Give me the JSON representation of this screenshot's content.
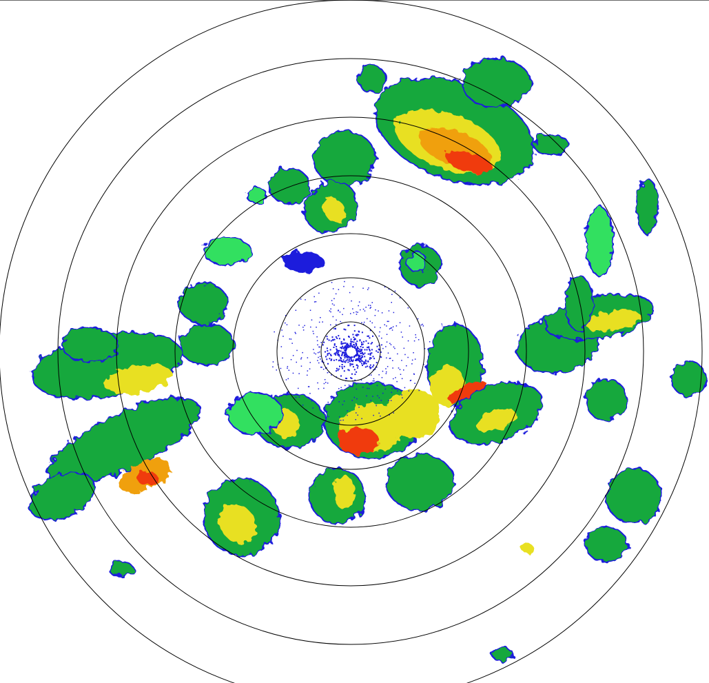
{
  "radar": {
    "product": "reflectivity-ppi",
    "range_ring_count": 7,
    "color_scale": {
      "very_light": "#1a1adc",
      "light": "#20c8c8",
      "light_green": "#30e060",
      "moderate": "#16a83c",
      "heavy": "#e8e020",
      "very_heavy": "#f0a010",
      "intense": "#f03a10",
      "extreme": "#e00000"
    },
    "ring_color": "#000000",
    "background": "#ffffff"
  }
}
